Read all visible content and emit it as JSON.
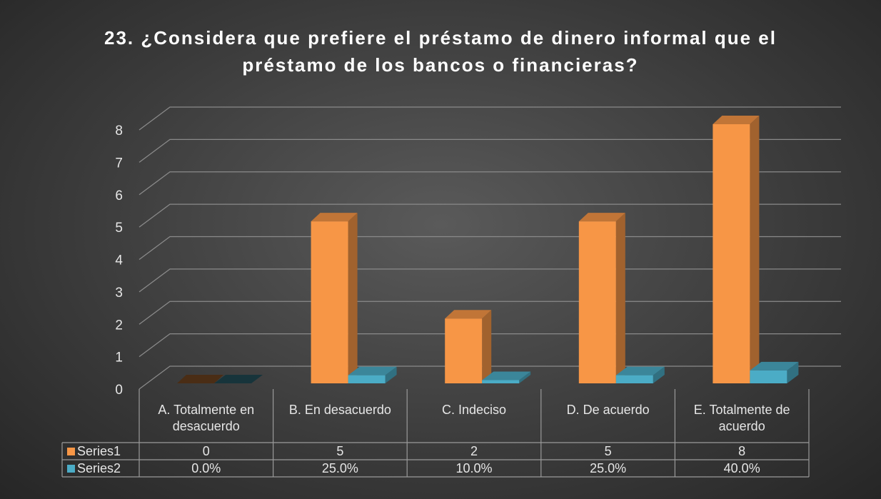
{
  "chart_data": {
    "type": "bar3d",
    "title": "23. ¿Considera que prefiere el préstamo de dinero informal que el préstamo de los bancos o financieras?",
    "categories": [
      "A. Totalmente en desacuerdo",
      "B. En desacuerdo",
      "C. Indeciso",
      "D. De acuerdo",
      "E. Totalmente de acuerdo"
    ],
    "series": [
      {
        "name": "Series1",
        "color": "#f79646",
        "values": [
          0,
          5,
          2,
          5,
          8
        ],
        "value_labels": [
          "0",
          "5",
          "2",
          "5",
          "8"
        ]
      },
      {
        "name": "Series2",
        "color": "#4bacc6",
        "values": [
          0,
          0.25,
          0.1,
          0.25,
          0.4
        ],
        "value_labels": [
          "0.0%",
          "25.0%",
          "10.0%",
          "25.0%",
          "40.0%"
        ]
      }
    ],
    "ylim": [
      0,
      8
    ],
    "yticks": [
      0,
      1,
      2,
      3,
      4,
      5,
      6,
      7,
      8
    ],
    "grid": true
  }
}
